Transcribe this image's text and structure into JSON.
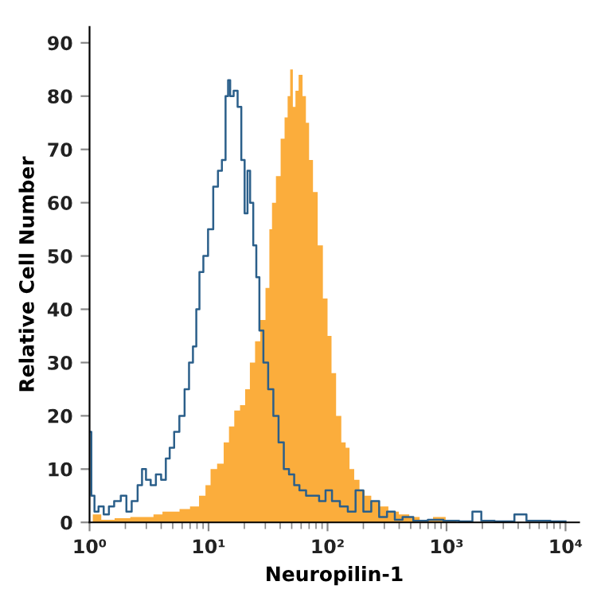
{
  "chart_data": {
    "type": "area",
    "xlabel": "Neuropilin-1",
    "ylabel": "Relative Cell Number",
    "log": "x",
    "grid": false,
    "legend": false,
    "xlim": [
      1,
      13000
    ],
    "xticks": [
      {
        "value": 1,
        "label": "10⁰"
      },
      {
        "value": 10,
        "label": "10¹"
      },
      {
        "value": 100,
        "label": "10²"
      },
      {
        "value": 1000,
        "label": "10³"
      },
      {
        "value": 10000,
        "label": "10⁴"
      }
    ],
    "ylim": [
      0,
      93
    ],
    "yticks": [
      0,
      10,
      20,
      30,
      40,
      50,
      60,
      70,
      80,
      90
    ],
    "series": [
      {
        "color": "#fbad3c",
        "x": [
          1,
          1.13,
          1.38,
          1.87,
          2.53,
          3.1,
          3.79,
          4.41,
          5.13,
          6.28,
          7.69,
          8.95,
          9.9,
          10.9,
          12.7,
          14.1,
          15.6,
          17.3,
          19.5,
          21.1,
          23.4,
          25.8,
          28.6,
          31.6,
          33.3,
          35,
          38.7,
          42,
          45.1,
          47.3,
          49.8,
          52.4,
          55.1,
          59.2,
          64.1,
          67.5,
          72.4,
          78.5,
          86.8,
          96,
          104,
          112,
          124,
          137,
          147,
          159,
          176,
          195,
          215,
          251,
          292,
          357,
          437,
          535,
          654,
          886,
          1080,
          1330
        ],
        "values": [
          0,
          1.5,
          0.5,
          0.8,
          1,
          1,
          1.5,
          2,
          2,
          2.5,
          3,
          5,
          7,
          10,
          11,
          15,
          18,
          21,
          22,
          25,
          30,
          34,
          38,
          44,
          55,
          60,
          65,
          72,
          76,
          80,
          85,
          78,
          81,
          84,
          80,
          75,
          68,
          62,
          52,
          42,
          35,
          28,
          20,
          15,
          14,
          10,
          8,
          6,
          5,
          4,
          3,
          2,
          1.5,
          1,
          0.5,
          1,
          0.3,
          0
        ]
      },
      {
        "type": "step",
        "color": "#2b5f8a",
        "x": [
          1,
          1.07,
          1.13,
          1.25,
          1.38,
          1.53,
          1.69,
          1.97,
          2.11,
          2.41,
          2.66,
          2.86,
          3.1,
          3.43,
          3.79,
          4.2,
          4.55,
          4.88,
          5.4,
          5.97,
          6.61,
          7.1,
          7.69,
          8.09,
          8.68,
          9.41,
          10.4,
          11.5,
          12.5,
          13.4,
          14.4,
          14.8,
          15.6,
          16.9,
          18.2,
          19.5,
          20.7,
          21.8,
          22.9,
          24.6,
          25.8,
          27.7,
          30.1,
          33.3,
          36.8,
          40.7,
          45.1,
          49.8,
          55.1,
          61,
          71,
          78.5,
          91.4,
          101,
          117,
          137,
          159,
          185,
          215,
          251,
          292,
          340,
          395,
          459,
          592,
          801,
          1080,
          1470,
          1830,
          2090,
          2980,
          4460,
          4930,
          10000
        ],
        "values": [
          17,
          5,
          2,
          3,
          1.5,
          3,
          4,
          5,
          2,
          4,
          7,
          10,
          8,
          7,
          9,
          8,
          12,
          14,
          17,
          20,
          25,
          30,
          33,
          40,
          47,
          50,
          55,
          63,
          66,
          68,
          80,
          83,
          80,
          81,
          78,
          68,
          58,
          66,
          60,
          52,
          46,
          36,
          30,
          25,
          20,
          15,
          10,
          9,
          7,
          6,
          5,
          5,
          4,
          6,
          4,
          3,
          2,
          6,
          2,
          4,
          1,
          2,
          0.5,
          1,
          0.3,
          0.5,
          0.3,
          0.2,
          2,
          0.3,
          0.2,
          1.5,
          0.3,
          0.2
        ]
      }
    ]
  }
}
